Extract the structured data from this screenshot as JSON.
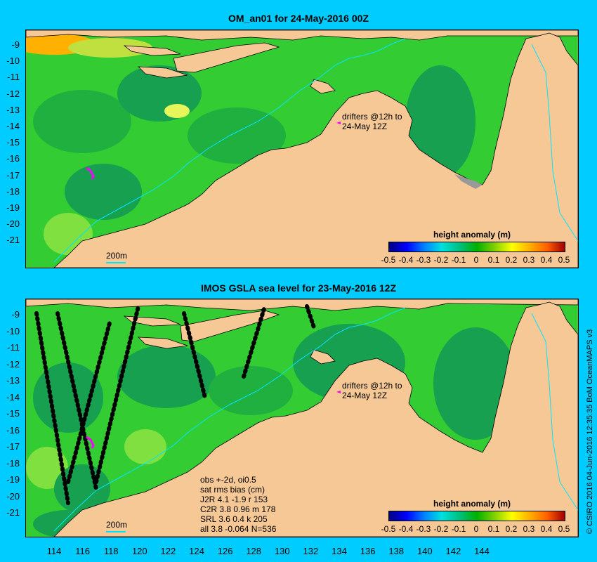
{
  "top_panel": {
    "title": "OM_an01 for 24-May-2016 00Z",
    "drifters_label_line1": "drifters @12h to",
    "drifters_label_line2": "24-May 12Z",
    "scale_label": "200m",
    "colorbar_title": "height anomaly (m)"
  },
  "bottom_panel": {
    "title": "IMOS GSLA sea level  for 23-May-2016 12Z",
    "drifters_label_line1": "drifters @12h to",
    "drifters_label_line2": "24-May 12Z",
    "scale_label": "200m",
    "colorbar_title": "height anomaly (m)",
    "stats": [
      "obs +-2d, oi0.5",
      "sat rms bias (cm)",
      "J2R   4.1  -1.9  r 153",
      "C2R   3.8  0.96  m 178",
      "SRL   3.6  0.4  k 205",
      "all   3.8  -0.064  N=536"
    ]
  },
  "y_axis_labels": [
    "-9",
    "-10",
    "-11",
    "-12",
    "-13",
    "-14",
    "-15",
    "-16",
    "-17",
    "-18",
    "-19",
    "-20",
    "-21"
  ],
  "x_axis_labels": [
    "114",
    "116",
    "118",
    "120",
    "122",
    "124",
    "126",
    "128",
    "130",
    "132",
    "134",
    "136",
    "138",
    "140",
    "142",
    "144"
  ],
  "colorbar_ticks": [
    "-0.5",
    "-0.4",
    "-0.3",
    "-0.2",
    "-0.1",
    "0",
    "0.1",
    "0.2",
    "0.3",
    "0.4",
    "0.5"
  ],
  "credit": "© CSIRO 2016  04-Jun-2016 12:35:35 BoM OceanMAPS v3",
  "colors": {
    "background": "#00ccff",
    "land": "#f5c896",
    "sea_green": "#33cc33",
    "sea_dark": "#16a050",
    "sea_light": "#80e040",
    "contour": "#00e5ff",
    "drifter": "#ff00ff"
  }
}
